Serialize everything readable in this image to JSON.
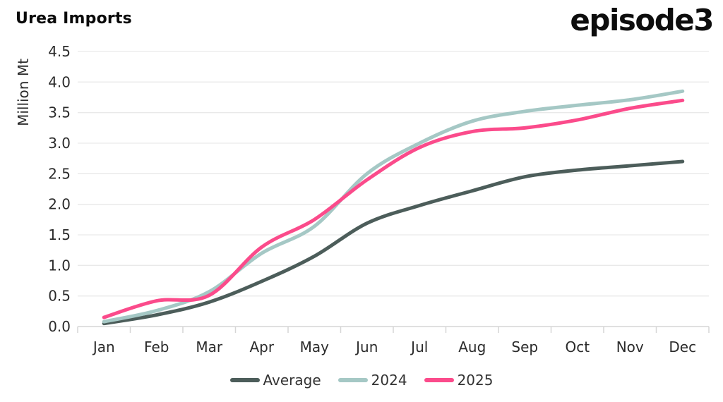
{
  "header": {
    "title": "Urea Imports",
    "brand": "episode3"
  },
  "chart_data": {
    "type": "line",
    "title": "Urea Imports",
    "xlabel": "",
    "ylabel": "Million Mt",
    "ylim": [
      0.0,
      4.5
    ],
    "ytick_step": 0.5,
    "grid": true,
    "legend_position": "bottom",
    "categories": [
      "Jan",
      "Feb",
      "Mar",
      "Apr",
      "May",
      "Jun",
      "Jul",
      "Aug",
      "Sep",
      "Oct",
      "Nov",
      "Dec"
    ],
    "series": [
      {
        "name": "Average",
        "color": "#4c5d5a",
        "values": [
          0.05,
          0.19,
          0.4,
          0.74,
          1.15,
          1.69,
          1.98,
          2.22,
          2.45,
          2.56,
          2.63,
          2.7
        ]
      },
      {
        "name": "2024",
        "color": "#a5c8c5",
        "values": [
          0.08,
          0.26,
          0.57,
          1.2,
          1.64,
          2.5,
          3.0,
          3.36,
          3.52,
          3.62,
          3.71,
          3.85
        ]
      },
      {
        "name": "2025",
        "color": "#fb4b8b",
        "values": [
          0.15,
          0.42,
          0.51,
          1.3,
          1.75,
          2.4,
          2.93,
          3.19,
          3.25,
          3.38,
          3.57,
          3.7
        ]
      }
    ]
  },
  "style": {
    "background": "#ffffff",
    "grid_color": "#e9e9e9",
    "axis_color": "#d6d6d6",
    "tick_label_color": "#2b2b2b",
    "legend_text_color": "#333333"
  }
}
